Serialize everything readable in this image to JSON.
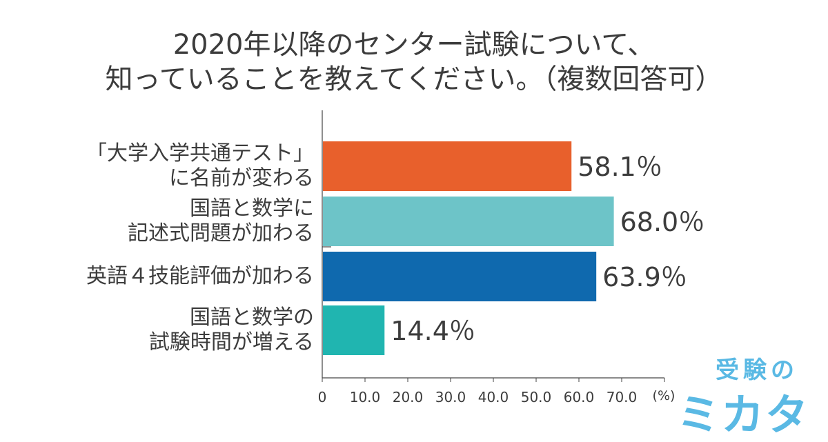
{
  "title_lines": [
    "2020年以降のセンター試験について、",
    "知っていることを教えてください。（複数回答可）"
  ],
  "chart_data": {
    "type": "bar",
    "orientation": "horizontal",
    "categories": [
      [
        "「大学入学共通テスト」",
        "に名前が変わる"
      ],
      [
        "国語と数学に",
        "記述式問題が加わる"
      ],
      [
        "英語４技能評価が加わる"
      ],
      [
        "国語と数学の",
        "試験時間が増える"
      ]
    ],
    "values": [
      58.1,
      68.0,
      63.9,
      14.4
    ],
    "value_labels": [
      "58.1％",
      "68.0％",
      "63.9％",
      "14.4％"
    ],
    "colors": [
      "#e8602c",
      "#6dc4c8",
      "#0f69ae",
      "#20b5b0"
    ],
    "xlim": [
      0,
      80
    ],
    "x_ticks": [
      0,
      10,
      20,
      30,
      40,
      50,
      60,
      70
    ],
    "x_tick_labels": [
      "0",
      "10.0",
      "20.0",
      "30.0",
      "40.0",
      "50.0",
      "60.0",
      "70.0"
    ],
    "x_unit_label": "(%)",
    "grid": false
  },
  "logo": {
    "top_text": "受験の",
    "main_text": "ミカタ",
    "color": "#5ab9e4"
  }
}
